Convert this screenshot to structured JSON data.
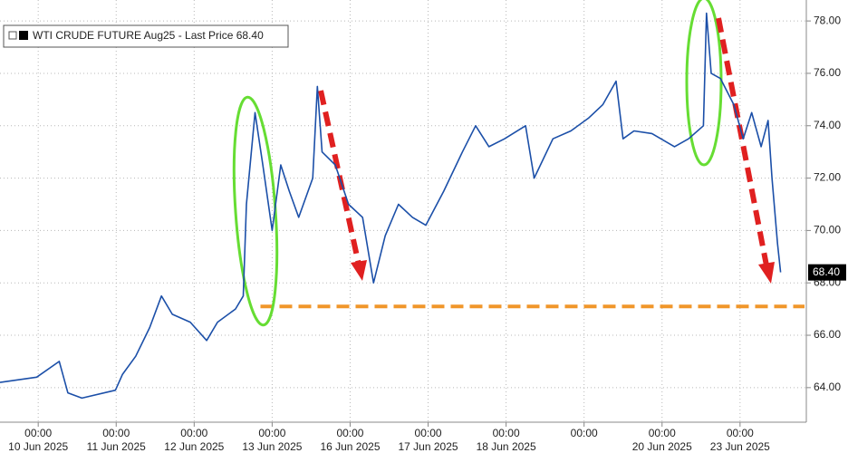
{
  "chart_data": {
    "type": "line",
    "series": [
      {
        "name": "WTI CRUDE FUTURE Aug25 - Last Price 68.40",
        "color": "#1b4fa8",
        "x": [
          -0.49,
          -0.02,
          0.27,
          0.38,
          0.56,
          0.99,
          1.08,
          1.25,
          1.43,
          1.58,
          1.72,
          1.95,
          2.16,
          2.3,
          2.53,
          2.63,
          2.67,
          2.78,
          2.88,
          3.0,
          3.11,
          3.22,
          3.34,
          3.52,
          3.58,
          3.64,
          3.81,
          3.98,
          4.16,
          4.3,
          4.45,
          4.62,
          4.8,
          4.97,
          5.2,
          5.44,
          5.61,
          5.78,
          5.98,
          6.25,
          6.36,
          6.6,
          6.83,
          7.06,
          7.24,
          7.41,
          7.5,
          7.64,
          7.87,
          8.16,
          8.34,
          8.53,
          8.57,
          8.63,
          8.75,
          8.92,
          9.04,
          9.15,
          9.27,
          9.36,
          9.41,
          9.48,
          9.52
        ],
        "values": [
          64.2,
          64.4,
          65.0,
          63.8,
          63.6,
          63.9,
          64.5,
          65.2,
          66.3,
          67.5,
          66.8,
          66.5,
          65.8,
          66.5,
          67.0,
          67.5,
          71.0,
          74.5,
          72.5,
          70.0,
          72.5,
          71.5,
          70.5,
          72.0,
          75.5,
          73.0,
          72.5,
          71.0,
          70.5,
          68.0,
          69.8,
          71.0,
          70.5,
          70.2,
          71.5,
          73.0,
          74.0,
          73.2,
          73.5,
          74.0,
          72.0,
          73.5,
          73.8,
          74.3,
          74.8,
          75.7,
          73.5,
          73.8,
          73.7,
          73.2,
          73.5,
          74.0,
          78.3,
          76.0,
          75.8,
          74.8,
          73.5,
          74.5,
          73.2,
          74.2,
          72.0,
          69.5,
          68.4
        ]
      }
    ],
    "last_price": {
      "value": 68.4,
      "label": "68.40"
    },
    "reference_line": {
      "value": 67.1,
      "color": "#f0962a"
    },
    "xlim": [
      -0.49,
      9.85
    ],
    "xticks": [
      {
        "value": 0,
        "label": "00:00"
      },
      {
        "value": 1,
        "label": "00:00"
      },
      {
        "value": 2,
        "label": "00:00"
      },
      {
        "value": 3,
        "label": "00:00"
      },
      {
        "value": 4,
        "label": "00:00"
      },
      {
        "value": 5,
        "label": "00:00"
      },
      {
        "value": 6,
        "label": "00:00"
      },
      {
        "value": 7,
        "label": "00:00"
      },
      {
        "value": 8,
        "label": "00:00"
      },
      {
        "value": 9,
        "label": "00:00"
      }
    ],
    "x_dates": [
      "10 Jun 2025",
      "11 Jun 2025",
      "12 Jun 2025",
      "13 Jun 2025",
      "16 Jun 2025",
      "17 Jun 2025",
      "18 Jun 2025",
      null,
      "20 Jun 2025",
      "23 Jun 2025"
    ],
    "ylim": [
      62.68,
      78.8
    ],
    "yticks": [
      {
        "value": 64,
        "label": "64.00"
      },
      {
        "value": 66,
        "label": "66.00"
      },
      {
        "value": 68,
        "label": "68.00"
      },
      {
        "value": 70,
        "label": "70.00"
      },
      {
        "value": 72,
        "label": "72.00"
      },
      {
        "value": 74,
        "label": "74.00"
      },
      {
        "value": 76,
        "label": "76.00"
      },
      {
        "value": 78,
        "label": "78.00"
      }
    ],
    "grid": true
  }
}
